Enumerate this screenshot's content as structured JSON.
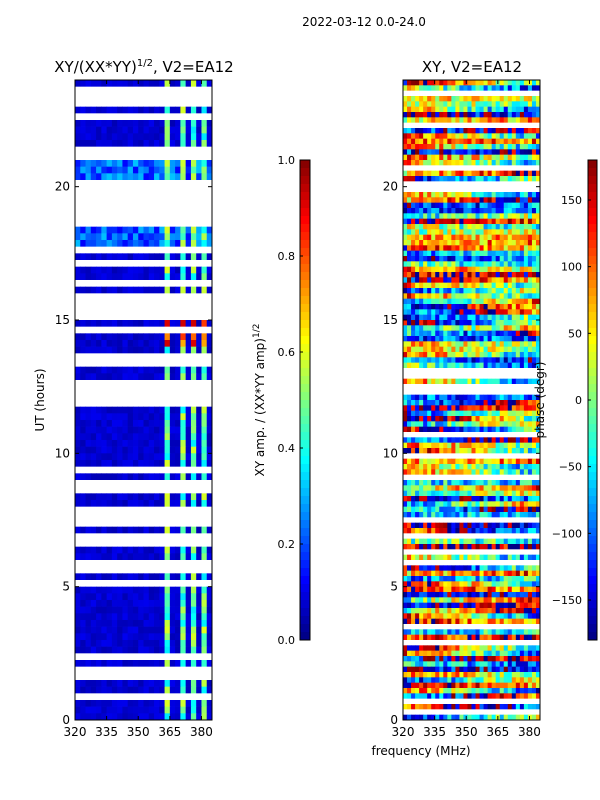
{
  "figure": {
    "suptitle": "2022-03-12 0.0-24.0",
    "xlabel_shared": "frequency (MHz)"
  },
  "chart_data": [
    {
      "type": "heatmap",
      "title": "XY/(XX*YY)",
      "title_exponent": "1/2",
      "title_suffix": ", V2=EA12",
      "xlabel": "",
      "ylabel": "UT (hours)",
      "xlim": [
        320,
        385
      ],
      "ylim": [
        0,
        24
      ],
      "xticks": [
        320,
        335,
        350,
        365,
        380
      ],
      "yticks": [
        0,
        5,
        10,
        15,
        20
      ],
      "colormap": "jet",
      "vmin": 0.0,
      "vmax": 1.0,
      "colorbar": {
        "label": "XY amp. / (XX*YY amp)",
        "label_exponent": "1/2",
        "ticks": [
          "0.0",
          "0.2",
          "0.4",
          "0.6",
          "0.8",
          "1.0"
        ],
        "tick_values": [
          0.0,
          0.2,
          0.4,
          0.6,
          0.8,
          1.0
        ]
      },
      "features": {
        "bright_freq_ranges_mhz": [
          [
            362,
            366
          ],
          [
            369,
            373
          ],
          [
            375,
            377
          ],
          [
            379,
            383
          ]
        ],
        "blank_rows_fraction": 0.35
      }
    },
    {
      "type": "heatmap",
      "title": "XY, V2=EA12",
      "xlabel": "frequency (MHz)",
      "ylabel": "",
      "xlim": [
        320,
        385
      ],
      "ylim": [
        0,
        24
      ],
      "xticks": [
        320,
        335,
        350,
        365,
        380
      ],
      "yticks": [
        0,
        5,
        10,
        15,
        20
      ],
      "colormap": "jet",
      "vmin": -180,
      "vmax": 180,
      "colorbar": {
        "label": "phase (degr)",
        "ticks": [
          "−150",
          "−100",
          "−50",
          "0",
          "50",
          "100",
          "150"
        ],
        "tick_values": [
          -150,
          -100,
          -50,
          0,
          50,
          100,
          150
        ]
      }
    }
  ]
}
